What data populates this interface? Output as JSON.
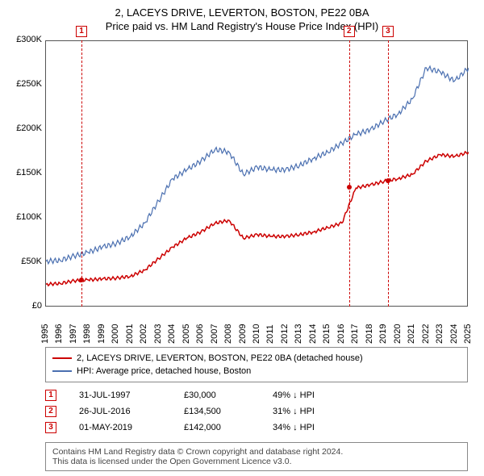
{
  "title_line1": "2, LACEYS DRIVE, LEVERTON, BOSTON, PE22 0BA",
  "title_line2": "Price paid vs. HM Land Registry's House Price Index (HPI)",
  "chart": {
    "type": "line",
    "background_color": "#ffffff",
    "border_color": "#555555",
    "x_years": [
      1995,
      1996,
      1997,
      1998,
      1999,
      2000,
      2001,
      2002,
      2003,
      2004,
      2005,
      2006,
      2007,
      2008,
      2009,
      2010,
      2011,
      2012,
      2013,
      2014,
      2015,
      2016,
      2017,
      2018,
      2019,
      2020,
      2021,
      2022,
      2023,
      2024,
      2025
    ],
    "ylim": [
      0,
      300000
    ],
    "ytick_step": 50000,
    "ytick_labels": [
      "£0",
      "£50K",
      "£100K",
      "£150K",
      "£200K",
      "£250K",
      "£300K"
    ],
    "series": [
      {
        "name": "property",
        "label": "2, LACEYS DRIVE, LEVERTON, BOSTON, PE22 0BA (detached house)",
        "color": "#cc0000",
        "line_width": 1.5,
        "values": [
          26000,
          27000,
          30000,
          31000,
          32000,
          33000,
          35000,
          42000,
          55000,
          68000,
          78000,
          85000,
          95000,
          98000,
          78000,
          82000,
          80000,
          80000,
          82000,
          85000,
          90000,
          95000,
          134500,
          138000,
          142000,
          145000,
          150000,
          165000,
          172000,
          170000,
          175000
        ]
      },
      {
        "name": "hpi",
        "label": "HPI: Average price, detached house, Boston",
        "color": "#4a6fb0",
        "line_width": 1.2,
        "values": [
          52000,
          53000,
          58000,
          62000,
          68000,
          72000,
          80000,
          95000,
          120000,
          145000,
          155000,
          165000,
          178000,
          175000,
          150000,
          158000,
          155000,
          155000,
          160000,
          168000,
          175000,
          185000,
          195000,
          200000,
          210000,
          218000,
          235000,
          270000,
          265000,
          255000,
          270000
        ]
      }
    ],
    "sale_markers": [
      {
        "n": "1",
        "year": 1997.58,
        "price": 30000
      },
      {
        "n": "2",
        "year": 2016.57,
        "price": 134500
      },
      {
        "n": "3",
        "year": 2019.33,
        "price": 142000
      }
    ]
  },
  "legend": {
    "rows": [
      {
        "color": "#cc0000",
        "label": "2, LACEYS DRIVE, LEVERTON, BOSTON, PE22 0BA (detached house)"
      },
      {
        "color": "#4a6fb0",
        "label": "HPI: Average price, detached house, Boston"
      }
    ]
  },
  "sales": [
    {
      "n": "1",
      "date": "31-JUL-1997",
      "price": "£30,000",
      "delta": "49% ↓ HPI"
    },
    {
      "n": "2",
      "date": "26-JUL-2016",
      "price": "£134,500",
      "delta": "31% ↓ HPI"
    },
    {
      "n": "3",
      "date": "01-MAY-2019",
      "price": "£142,000",
      "delta": "34% ↓ HPI"
    }
  ],
  "footer": {
    "line1": "Contains HM Land Registry data © Crown copyright and database right 2024.",
    "line2": "This data is licensed under the Open Government Licence v3.0."
  }
}
